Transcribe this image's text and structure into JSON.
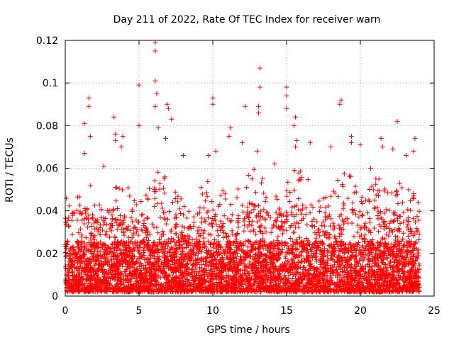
{
  "chart_data": {
    "type": "scatter",
    "title": "Day 211 of 2022, Rate Of TEC Index for receiver warn",
    "xlabel": "GPS time / hours",
    "ylabel": "ROTI / TECUs",
    "xlim": [
      0,
      25
    ],
    "ylim": [
      0,
      0.12
    ],
    "xticks": [
      0,
      5,
      10,
      15,
      20,
      25
    ],
    "xtick_labels": [
      "0",
      "5",
      "10",
      "15",
      "20",
      "25"
    ],
    "yticks": [
      0,
      0.02,
      0.04,
      0.06,
      0.08,
      0.1,
      0.12
    ],
    "ytick_labels": [
      "0",
      "0.02",
      "0.04",
      "0.06",
      "0.08",
      "0.1",
      "0.12"
    ],
    "grid": true,
    "marker": "+",
    "series_color": "#ff0000",
    "x_range_hours": [
      0,
      24
    ],
    "envelope": {
      "x": [
        0,
        0.5,
        1,
        1.5,
        2,
        2.5,
        3,
        3.5,
        4,
        4.5,
        5,
        5.5,
        6,
        6.5,
        7,
        7.5,
        8,
        8.5,
        9,
        9.5,
        10,
        10.5,
        11,
        11.5,
        12,
        12.5,
        13,
        13.5,
        14,
        14.5,
        15,
        15.5,
        16,
        16.5,
        17,
        17.5,
        18,
        18.5,
        19,
        19.5,
        20,
        20.5,
        21,
        21.5,
        22,
        22.5,
        23,
        23.5,
        24
      ],
      "typical_max": [
        0.05,
        0.055,
        0.055,
        0.06,
        0.05,
        0.045,
        0.05,
        0.055,
        0.055,
        0.05,
        0.045,
        0.05,
        0.06,
        0.06,
        0.055,
        0.05,
        0.045,
        0.045,
        0.05,
        0.055,
        0.055,
        0.05,
        0.05,
        0.05,
        0.055,
        0.06,
        0.06,
        0.055,
        0.05,
        0.05,
        0.055,
        0.06,
        0.06,
        0.055,
        0.05,
        0.05,
        0.055,
        0.06,
        0.06,
        0.055,
        0.05,
        0.05,
        0.055,
        0.055,
        0.05,
        0.055,
        0.05,
        0.05,
        0.045
      ]
    },
    "outliers": [
      {
        "x": 1.3,
        "y": 0.081
      },
      {
        "x": 1.6,
        "y": 0.093
      },
      {
        "x": 1.6,
        "y": 0.089
      },
      {
        "x": 1.7,
        "y": 0.075
      },
      {
        "x": 1.3,
        "y": 0.067
      },
      {
        "x": 3.3,
        "y": 0.084
      },
      {
        "x": 3.4,
        "y": 0.076
      },
      {
        "x": 3.4,
        "y": 0.073
      },
      {
        "x": 3.9,
        "y": 0.075
      },
      {
        "x": 3.8,
        "y": 0.07
      },
      {
        "x": 2.6,
        "y": 0.061
      },
      {
        "x": 5.0,
        "y": 0.099
      },
      {
        "x": 5.0,
        "y": 0.08
      },
      {
        "x": 6.1,
        "y": 0.119
      },
      {
        "x": 6.1,
        "y": 0.115
      },
      {
        "x": 6.1,
        "y": 0.101
      },
      {
        "x": 6.2,
        "y": 0.095
      },
      {
        "x": 6.1,
        "y": 0.089
      },
      {
        "x": 6.3,
        "y": 0.079
      },
      {
        "x": 6.9,
        "y": 0.09
      },
      {
        "x": 7.0,
        "y": 0.088
      },
      {
        "x": 7.2,
        "y": 0.083
      },
      {
        "x": 6.8,
        "y": 0.074
      },
      {
        "x": 8.0,
        "y": 0.066
      },
      {
        "x": 9.7,
        "y": 0.066
      },
      {
        "x": 10.0,
        "y": 0.093
      },
      {
        "x": 10.0,
        "y": 0.09
      },
      {
        "x": 10.2,
        "y": 0.068
      },
      {
        "x": 11.2,
        "y": 0.079
      },
      {
        "x": 11.1,
        "y": 0.075
      },
      {
        "x": 12.2,
        "y": 0.089
      },
      {
        "x": 12.0,
        "y": 0.072
      },
      {
        "x": 13.2,
        "y": 0.107
      },
      {
        "x": 13.2,
        "y": 0.098
      },
      {
        "x": 13.1,
        "y": 0.089
      },
      {
        "x": 13.1,
        "y": 0.086
      },
      {
        "x": 13.0,
        "y": 0.068
      },
      {
        "x": 15.0,
        "y": 0.098
      },
      {
        "x": 15.0,
        "y": 0.094
      },
      {
        "x": 15.0,
        "y": 0.088
      },
      {
        "x": 15.6,
        "y": 0.084
      },
      {
        "x": 15.5,
        "y": 0.08
      },
      {
        "x": 15.7,
        "y": 0.073
      },
      {
        "x": 15.6,
        "y": 0.07
      },
      {
        "x": 16.6,
        "y": 0.072
      },
      {
        "x": 18.7,
        "y": 0.092
      },
      {
        "x": 18.6,
        "y": 0.09
      },
      {
        "x": 19.4,
        "y": 0.075
      },
      {
        "x": 19.4,
        "y": 0.072
      },
      {
        "x": 18.0,
        "y": 0.07
      },
      {
        "x": 20.0,
        "y": 0.071
      },
      {
        "x": 21.4,
        "y": 0.074
      },
      {
        "x": 21.5,
        "y": 0.07
      },
      {
        "x": 22.2,
        "y": 0.069
      },
      {
        "x": 22.5,
        "y": 0.082
      },
      {
        "x": 23.7,
        "y": 0.074
      },
      {
        "x": 23.6,
        "y": 0.068
      },
      {
        "x": 23.1,
        "y": 0.066
      },
      {
        "x": 20.7,
        "y": 0.06
      },
      {
        "x": 14.2,
        "y": 0.062
      }
    ],
    "random_seed": 211,
    "bulk_point_count": 5200
  }
}
